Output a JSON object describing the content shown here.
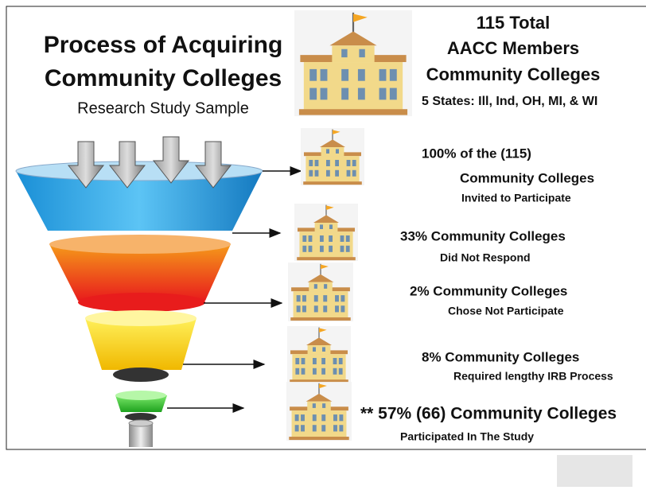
{
  "title": [
    "Process of Acquiring",
    "Community Colleges"
  ],
  "subtitle": "Research Study Sample",
  "summary": {
    "lines": [
      "115 Total",
      "AACC Members",
      "Community Colleges"
    ],
    "states": "5 States: Ill, Ind, OH, MI, & WI"
  },
  "stages": [
    {
      "headline": "100% of the (115)",
      "line2": "Community Colleges",
      "detail": "Invited to Participate"
    },
    {
      "headline": "33% Community Colleges",
      "detail": "Did Not Respond"
    },
    {
      "headline": "2%  Community Colleges",
      "detail": "Chose Not Participate"
    },
    {
      "headline": "8%  Community Colleges",
      "detail": "Required lengthy IRB Process"
    },
    {
      "headline": "** 57% (66) Community Colleges",
      "detail": "Participated In The Study"
    }
  ]
}
